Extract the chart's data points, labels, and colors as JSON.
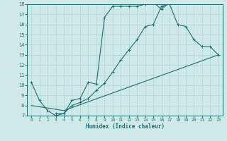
{
  "xlabel": "Humidex (Indice chaleur)",
  "xlim": [
    -0.5,
    23.5
  ],
  "ylim": [
    7,
    18
  ],
  "yticks": [
    7,
    8,
    9,
    10,
    11,
    12,
    13,
    14,
    15,
    16,
    17,
    18
  ],
  "xticks": [
    0,
    1,
    2,
    3,
    4,
    5,
    6,
    7,
    8,
    9,
    10,
    11,
    12,
    13,
    14,
    15,
    16,
    17,
    18,
    19,
    20,
    21,
    22,
    23
  ],
  "bg_color": "#cfe9e9",
  "grid_color": "#b0d4d4",
  "line_color": "#1a6e6e",
  "line1_markers": true,
  "line2_markers": false,
  "line3_markers": true,
  "line1": {
    "x": [
      0,
      1,
      2,
      3,
      4,
      5,
      6,
      7,
      8,
      9,
      10,
      11,
      12,
      13,
      14,
      15,
      16,
      17
    ],
    "y": [
      10.3,
      8.5,
      7.5,
      7.0,
      7.2,
      8.5,
      8.7,
      10.3,
      10.1,
      16.7,
      17.8,
      17.8,
      17.8,
      17.8,
      18.0,
      18.2,
      17.5,
      18.2
    ]
  },
  "line2": {
    "x": [
      0,
      4,
      23
    ],
    "y": [
      8.0,
      7.5,
      13.0
    ]
  },
  "line3": {
    "x": [
      3,
      4,
      5,
      6,
      7,
      8,
      9,
      10,
      11,
      12,
      13,
      14,
      15,
      16,
      17,
      18,
      19,
      20,
      21,
      22,
      23
    ],
    "y": [
      7.2,
      7.2,
      8.0,
      8.3,
      8.7,
      9.5,
      10.2,
      11.3,
      12.5,
      13.5,
      14.5,
      15.8,
      16.0,
      17.8,
      18.0,
      16.0,
      15.8,
      14.5,
      13.8,
      13.8,
      13.0
    ]
  }
}
